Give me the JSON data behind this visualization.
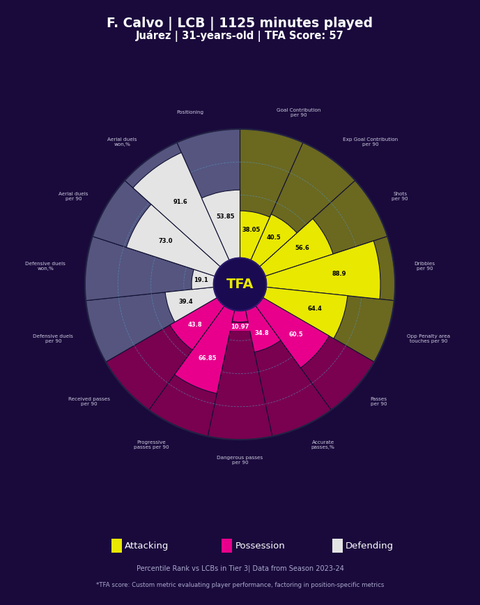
{
  "title_line1": "F. Calvo | LCB | 1125 minutes played",
  "title_line2": "Juárez | 31-years-old | TFA Score: 57",
  "background_color": "#1a0a3c",
  "categories": [
    "Goal Contribution\nper 90",
    "Exp Goal Contribution\nper 90",
    "Shots\nper 90",
    "Dribbles\nper 90",
    "Opp Penalty area\ntouches per 90",
    "Passes\nper 90",
    "Accurate\npasses,%",
    "Dangerous passes\nper 90",
    "Progressive\npasses per 90",
    "Received passes\nper 90",
    "Defensive duels\nper 90",
    "Defensive duels\nwon,%",
    "Aerial duels\nper 90",
    "Aerial duels\nwon,%",
    "Positioning"
  ],
  "values": [
    38.05,
    40.5,
    56.6,
    88.9,
    64.4,
    60.5,
    34.8,
    10.97,
    66.85,
    43.8,
    39.4,
    19.1,
    73.0,
    91.6,
    53.85
  ],
  "group_labels": [
    "Attacking",
    "Possession",
    "Defending"
  ],
  "group_indices": [
    [
      0,
      1,
      2,
      3,
      4
    ],
    [
      5,
      6,
      7,
      8,
      9
    ],
    [
      10,
      11,
      12,
      13,
      14
    ]
  ],
  "fill_colors": [
    "#e8e800",
    "#e8e800",
    "#e8e800",
    "#e8e800",
    "#e8e800",
    "#e8008c",
    "#e8008c",
    "#e8008c",
    "#e8008c",
    "#e8008c",
    "#e4e4e4",
    "#e4e4e4",
    "#e4e4e4",
    "#e4e4e4",
    "#e4e4e4"
  ],
  "bg_colors": [
    "#6b6820",
    "#6b6820",
    "#6b6820",
    "#6b6820",
    "#6b6820",
    "#7a0050",
    "#7a0050",
    "#7a0050",
    "#7a0050",
    "#7a0050",
    "#555580",
    "#555580",
    "#555580",
    "#555580",
    "#555580"
  ],
  "val_label_fc": [
    "#e8e800",
    "#e8e800",
    "#e8e800",
    "#e8e800",
    "#e8e800",
    "#e8008c",
    "#e8008c",
    "#e8008c",
    "#e8008c",
    "#e8008c",
    "#e4e4e4",
    "#e4e4e4",
    "#e4e4e4",
    "#e4e4e4",
    "#e4e4e4"
  ],
  "val_label_tc": [
    "black",
    "black",
    "black",
    "black",
    "black",
    "white",
    "white",
    "white",
    "white",
    "white",
    "black",
    "black",
    "black",
    "black",
    "black"
  ],
  "legend_colors": [
    "#e8e800",
    "#e8008c",
    "#e4e4e4"
  ],
  "grid_color": "#5599bb",
  "divider_color": "#111133",
  "center_bg": "#1a0a52",
  "tfa_color": "#e8e800",
  "label_color": "#ccccdd",
  "subtitle1": "Percentile Rank vs LCBs in Tier 3| Data from Season 2023-24",
  "subtitle2": "*TFA score: Custom metric evaluating player performance, factoring in position-specific metrics"
}
